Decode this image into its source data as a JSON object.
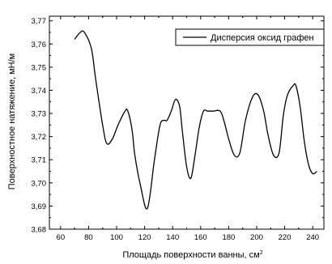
{
  "chart_data": {
    "type": "line",
    "title": "",
    "xlabel": "Площадь поверхности ванны, см",
    "xlabel_superscript": "2",
    "ylabel": "Поверхностное натяжение, мН/м",
    "xlim": [
      52,
      248
    ],
    "ylim": [
      3.68,
      3.772
    ],
    "xticks": [
      60,
      80,
      100,
      120,
      140,
      160,
      180,
      200,
      220,
      240
    ],
    "yticks": [
      3.68,
      3.69,
      3.7,
      3.71,
      3.72,
      3.73,
      3.74,
      3.75,
      3.76,
      3.77
    ],
    "yticks_labels": [
      "3,68",
      "3,69",
      "3,70",
      "3,71",
      "3,72",
      "3,73",
      "3,74",
      "3,75",
      "3,76",
      "3,77"
    ],
    "legend_position": "top-right",
    "grid": false,
    "series": [
      {
        "name": "Дисперсия оксид графен",
        "color": "#000000",
        "x": [
          70,
          74,
          77,
          82,
          85,
          90,
          93,
          97,
          101,
          106,
          108,
          111,
          113,
          117,
          122,
          127,
          131,
          134,
          136,
          139,
          142,
          145,
          147,
          150,
          153,
          156,
          159,
          162,
          165,
          169,
          174,
          177,
          180,
          184,
          188,
          192,
          197,
          201,
          205,
          208,
          212,
          216,
          219,
          222,
          226,
          228,
          231,
          234,
          237,
          240,
          243
        ],
        "y": [
          3.762,
          3.765,
          3.765,
          3.758,
          3.745,
          3.725,
          3.717,
          3.719,
          3.725,
          3.731,
          3.731,
          3.723,
          3.712,
          3.699,
          3.689,
          3.71,
          3.725,
          3.727,
          3.727,
          3.731,
          3.736,
          3.733,
          3.722,
          3.707,
          3.702,
          3.712,
          3.724,
          3.731,
          3.731,
          3.731,
          3.731,
          3.726,
          3.719,
          3.712,
          3.713,
          3.727,
          3.737,
          3.738,
          3.731,
          3.721,
          3.712,
          3.713,
          3.729,
          3.738,
          3.742,
          3.742,
          3.733,
          3.718,
          3.708,
          3.704,
          3.705
        ]
      }
    ]
  }
}
